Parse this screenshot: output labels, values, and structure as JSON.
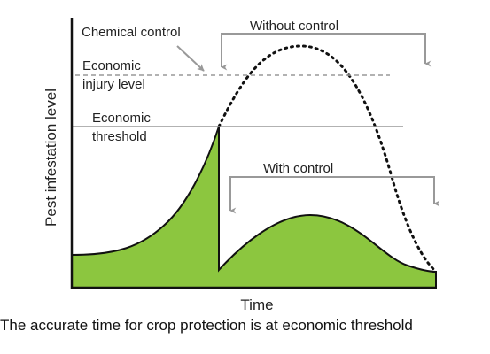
{
  "labels": {
    "chemical_control": "Chemical control",
    "without_control": "Without control",
    "economic_injury_level": [
      "Economic",
      "injury level"
    ],
    "economic_threshold": [
      "Economic",
      "threshold"
    ],
    "with_control": "With control",
    "y_axis": "Pest infestation level",
    "x_axis": "Time"
  },
  "caption": "The accurate time for crop protection is at economic threshold"
}
